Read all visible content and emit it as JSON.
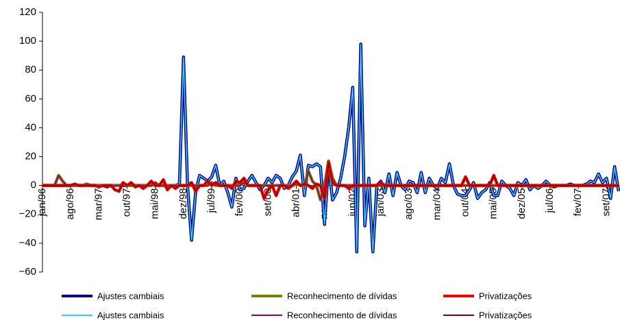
{
  "chart_data": {
    "type": "line",
    "categories": [
      "jan/96",
      null,
      null,
      null,
      null,
      null,
      null,
      "ago/96",
      null,
      null,
      null,
      null,
      null,
      null,
      "mar/97",
      null,
      null,
      null,
      null,
      null,
      null,
      "out/97",
      null,
      null,
      null,
      null,
      null,
      null,
      "mai/98",
      null,
      null,
      null,
      null,
      null,
      null,
      "dez/98",
      null,
      null,
      null,
      null,
      null,
      null,
      "jul/99",
      null,
      null,
      null,
      null,
      null,
      null,
      "fev/00",
      null,
      null,
      null,
      null,
      null,
      null,
      "set/00",
      null,
      null,
      null,
      null,
      null,
      null,
      "abr/01",
      null,
      null,
      null,
      null,
      null,
      null,
      "nov/01",
      null,
      null,
      null,
      null,
      null,
      null,
      "jun/02",
      null,
      null,
      null,
      null,
      null,
      null,
      "jan/03",
      null,
      null,
      null,
      null,
      null,
      null,
      "ago/03",
      null,
      null,
      null,
      null,
      null,
      null,
      "mar/04",
      null,
      null,
      null,
      null,
      null,
      null,
      "out/04",
      null,
      null,
      null,
      null,
      null,
      null,
      "mai/05",
      null,
      null,
      null,
      null,
      null,
      null,
      "dez/05",
      null,
      null,
      null,
      null,
      null,
      null,
      "jul/06",
      null,
      null,
      null,
      null,
      null,
      null,
      "fev/07",
      null,
      null,
      null,
      null,
      null,
      null,
      "set/07",
      null,
      null,
      null
    ],
    "ylim": [
      -60,
      120
    ],
    "yticks": [
      {
        "value": -60,
        "label": "−60"
      },
      {
        "value": -40,
        "label": "−40"
      },
      {
        "value": -20,
        "label": "−20"
      },
      0,
      20,
      40,
      60,
      80,
      100,
      120
    ],
    "series": [
      {
        "name": "Ajustes cambiais",
        "color": "#000080",
        "highlight_color": "#33ccff",
        "values": [
          0,
          0,
          0,
          0,
          0,
          0,
          0,
          0,
          0,
          0,
          0,
          1,
          0,
          0,
          0,
          0,
          -1,
          0,
          0,
          0,
          0,
          0,
          1,
          0,
          0,
          0,
          0,
          0,
          1,
          0,
          0,
          -1,
          0,
          0,
          1,
          89,
          0,
          -38,
          -5,
          7,
          5,
          3,
          6,
          14,
          0,
          3,
          -5,
          -15,
          5,
          -3,
          -2,
          3,
          7,
          2,
          -3,
          0,
          5,
          2,
          7,
          5,
          -2,
          0,
          6,
          10,
          21,
          -7,
          14,
          13,
          15,
          13,
          -27,
          15,
          -10,
          -5,
          5,
          20,
          40,
          68,
          -46,
          98,
          -28,
          5,
          -46,
          0,
          3,
          -5,
          8,
          -7,
          9,
          0,
          -3,
          3,
          2,
          -5,
          9,
          -5,
          5,
          0,
          -2,
          5,
          2,
          15,
          0,
          -6,
          -7,
          -7,
          -3,
          2,
          -9,
          -5,
          -3,
          2,
          -7,
          -7,
          3,
          0,
          -2,
          -7,
          2,
          0,
          4,
          -3,
          0,
          -2,
          0,
          3,
          0,
          -1,
          0,
          0,
          0,
          1,
          0,
          0,
          0,
          1,
          3,
          2,
          8,
          2,
          5,
          -9,
          13,
          -4
        ]
      },
      {
        "name": "Reconhecimento de dívidas",
        "color": "#808000",
        "highlight_color": "#800080",
        "values": [
          0,
          0,
          0,
          0,
          7,
          3,
          0,
          0,
          0,
          0,
          0,
          1,
          0,
          0,
          0,
          0,
          0,
          0,
          0,
          0,
          1,
          0,
          0,
          0,
          0,
          0,
          0,
          0,
          2,
          0,
          0,
          0,
          0,
          0,
          0,
          0,
          0,
          0,
          0,
          0,
          0,
          0,
          2,
          0,
          0,
          0,
          0,
          0,
          0,
          0,
          2,
          0,
          0,
          0,
          0,
          0,
          0,
          0,
          0,
          0,
          0,
          0,
          0,
          1,
          0,
          0,
          10,
          3,
          0,
          -10,
          0,
          17,
          5,
          0,
          0,
          0,
          0,
          0,
          0,
          0,
          0,
          0,
          0,
          0,
          0,
          0,
          0,
          0,
          0,
          0,
          0,
          0,
          0,
          0,
          0,
          0,
          0,
          0,
          0,
          0,
          0,
          0,
          0,
          0,
          0,
          0,
          0,
          0,
          0,
          0,
          0,
          0,
          0,
          0,
          0,
          0,
          0,
          0,
          0,
          0,
          0,
          0,
          0,
          0,
          0,
          0,
          0,
          0,
          0,
          0,
          0,
          0,
          0,
          0,
          0,
          0,
          0,
          0,
          0,
          0,
          0,
          0,
          0,
          0
        ]
      },
      {
        "name": "Privatizações",
        "color": "#ff0000",
        "highlight_color": "#800000",
        "values": [
          0,
          0,
          0,
          0,
          0,
          0,
          0,
          0,
          1,
          0,
          0,
          0,
          0,
          0,
          -1,
          0,
          0,
          0,
          -3,
          -4,
          2,
          0,
          2,
          -1,
          0,
          -2,
          0,
          3,
          0,
          0,
          4,
          -3,
          0,
          -2,
          0,
          0,
          0,
          2,
          -4,
          0,
          0,
          3,
          0,
          2,
          0,
          0,
          0,
          -2,
          3,
          2,
          5,
          0,
          0,
          0,
          0,
          -9,
          -3,
          0,
          -7,
          0,
          0,
          -2,
          0,
          3,
          0,
          1,
          0,
          -2,
          1,
          0,
          -9,
          16,
          2,
          0,
          0,
          0,
          -2,
          0,
          0,
          0,
          0,
          0,
          0,
          0,
          2,
          0,
          0,
          0,
          0,
          0,
          0,
          0,
          0,
          0,
          0,
          0,
          0,
          0,
          0,
          0,
          0,
          0,
          0,
          0,
          0,
          6,
          0,
          0,
          0,
          0,
          0,
          0,
          7,
          0,
          0,
          0,
          0,
          0,
          0,
          0,
          0,
          0,
          0,
          0,
          0,
          0,
          0,
          0,
          0,
          0,
          0,
          0,
          0,
          0,
          0,
          0,
          0,
          0,
          0,
          0,
          0,
          0,
          0,
          0
        ]
      }
    ]
  }
}
